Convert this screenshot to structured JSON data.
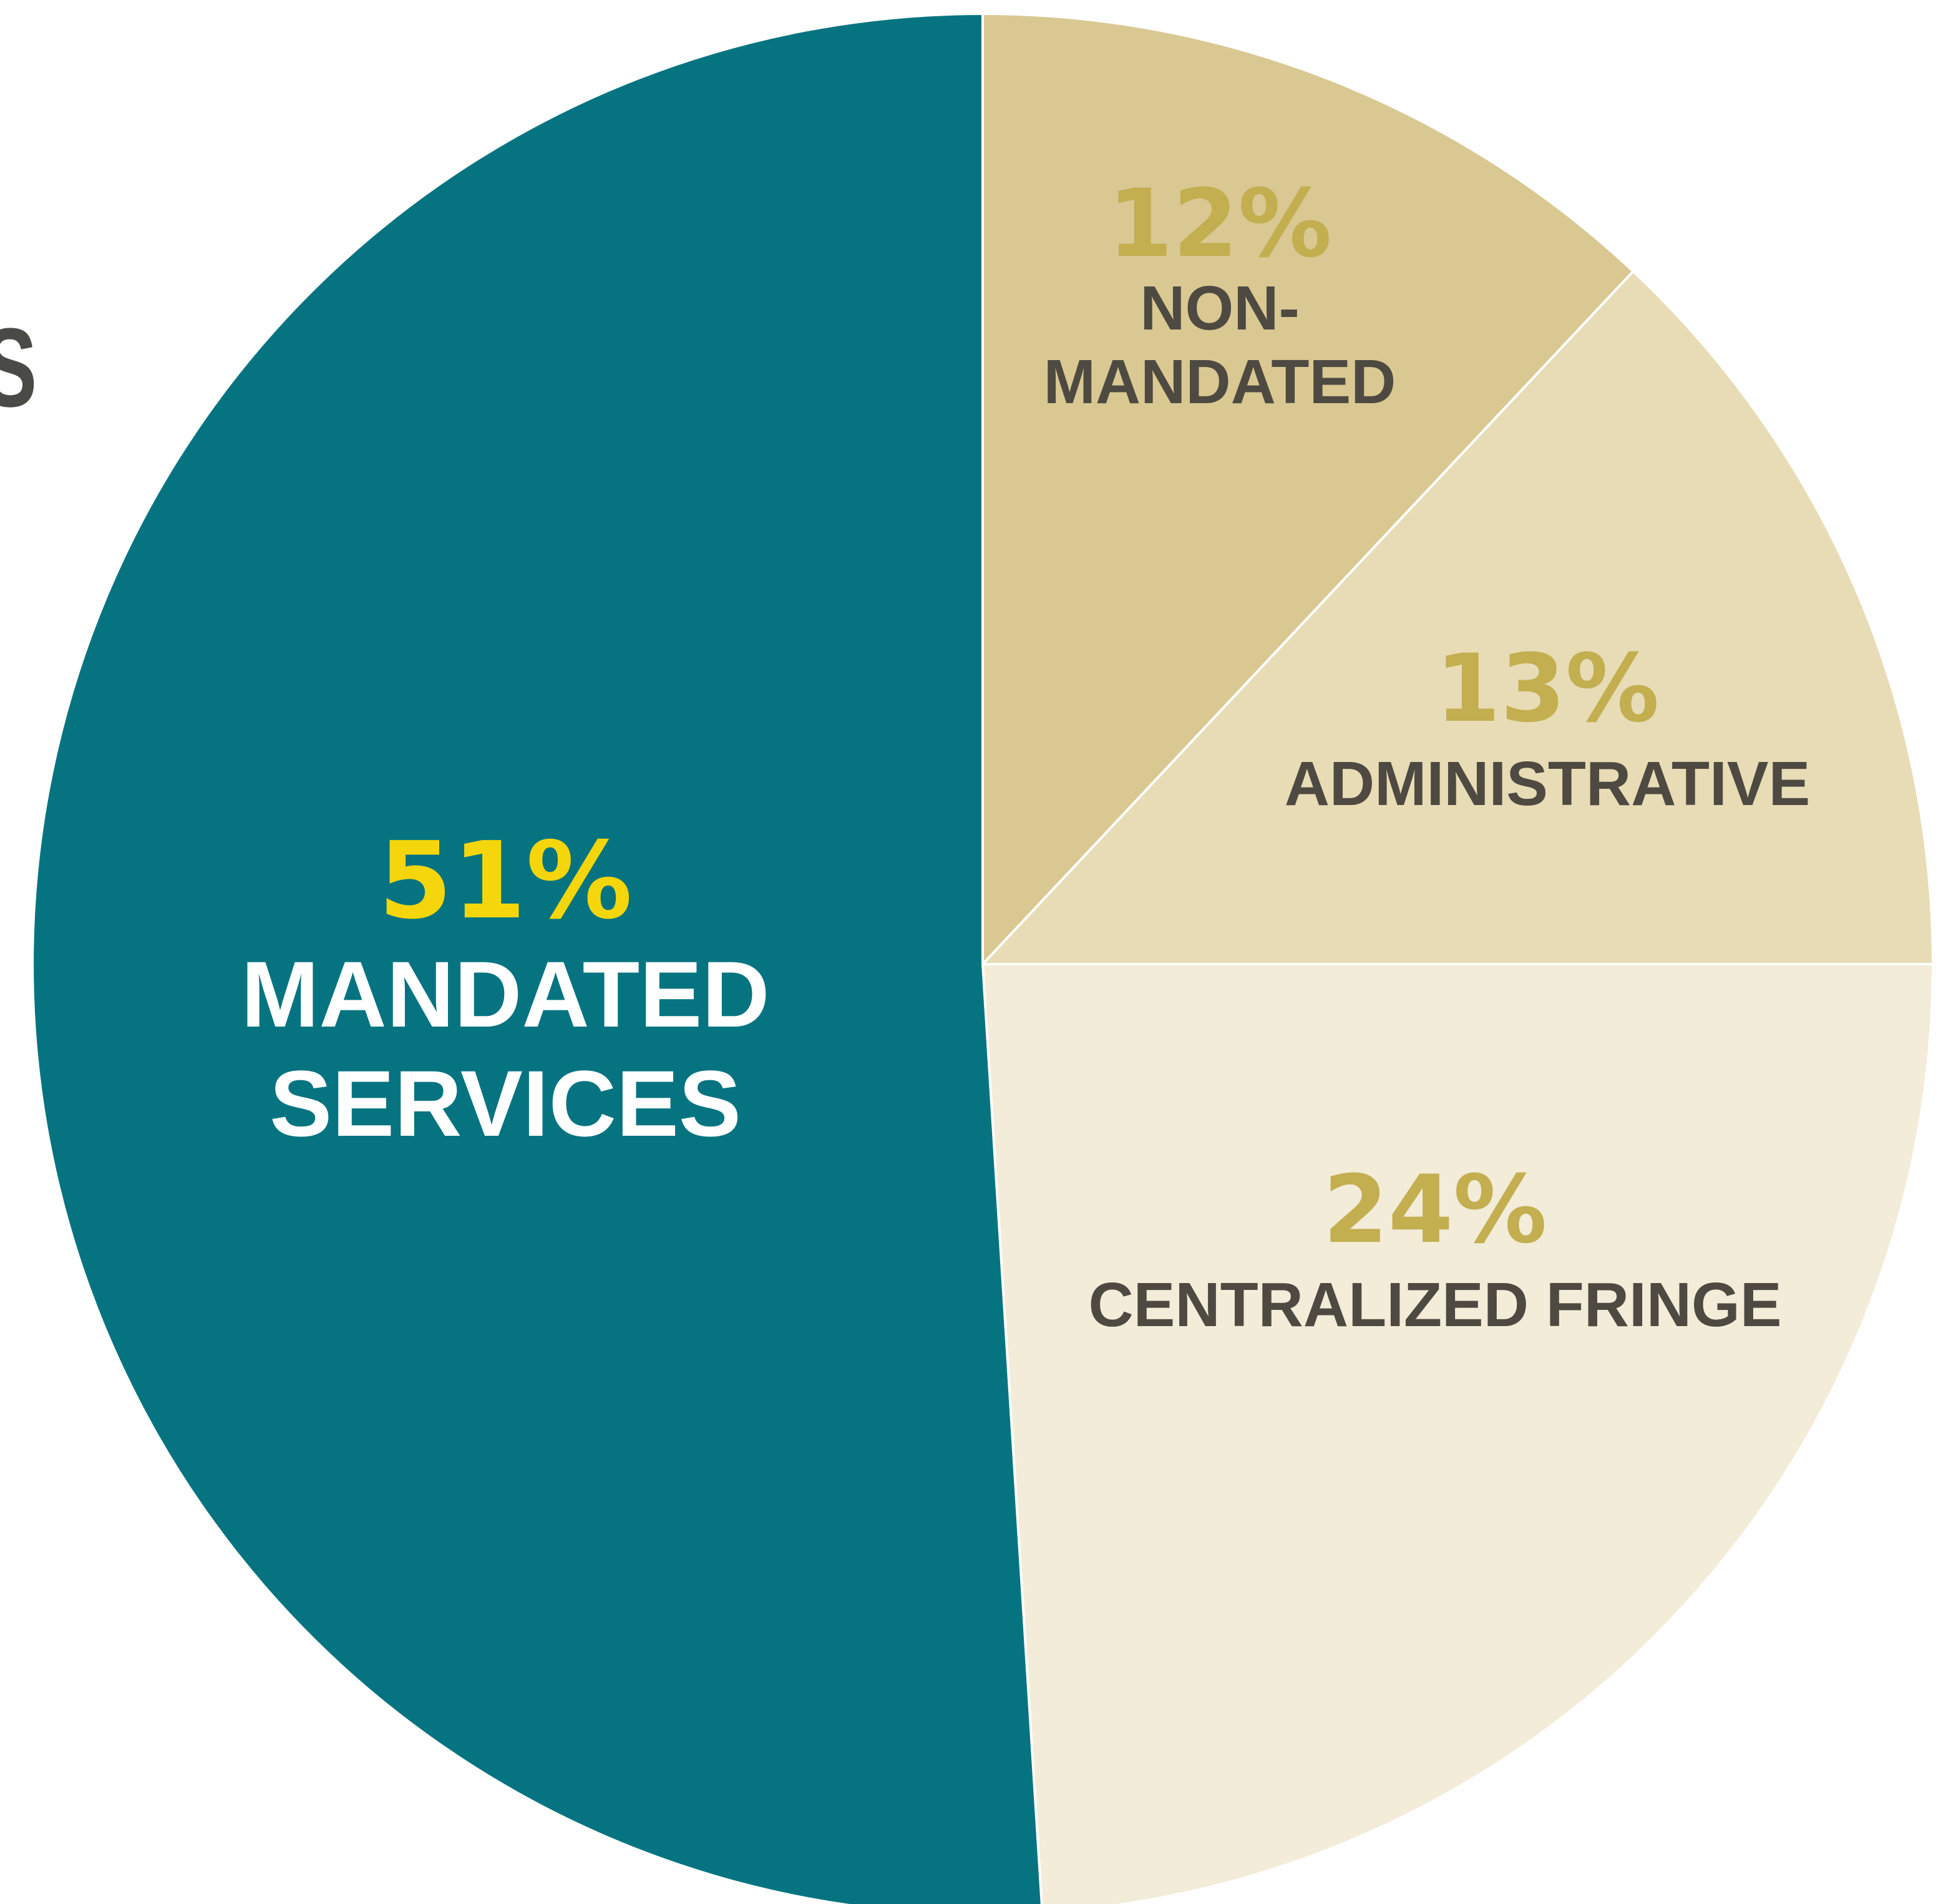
{
  "chart_data": {
    "type": "pie",
    "title": "",
    "start": "top",
    "direction": "clockwise",
    "slices": [
      {
        "value": 12,
        "percent_label": "12%",
        "label_lines": [
          "NON-",
          "MANDATED"
        ],
        "color": "#d9c892",
        "percent_color": "#c3ae50",
        "label_color": "#4e4a42"
      },
      {
        "value": 13,
        "percent_label": "13%",
        "label_lines": [
          "ADMINISTRATIVE"
        ],
        "color": "#e7dcb5",
        "percent_color": "#c3ae50",
        "label_color": "#4e4a42"
      },
      {
        "value": 24,
        "percent_label": "24%",
        "label_lines": [
          "CENTRALIZED FRINGE"
        ],
        "color": "#f2ecd8",
        "percent_color": "#c3ae50",
        "label_color": "#4e4a42"
      },
      {
        "value": 51,
        "percent_label": "51%",
        "label_lines": [
          "MANDATED",
          "SERVICES"
        ],
        "color": "#057480",
        "percent_color": "#f5d60c",
        "label_color": "#ffffff"
      }
    ]
  },
  "edge_text": "S"
}
